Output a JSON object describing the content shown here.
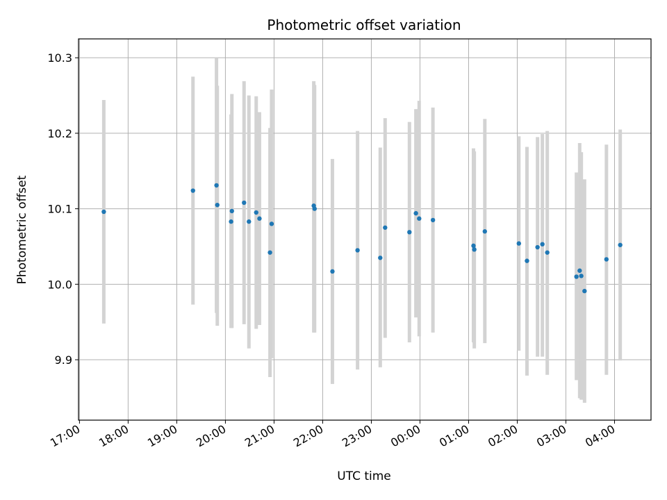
{
  "chart_data": {
    "type": "scatter",
    "title": "Photometric offset variation",
    "xlabel": "UTC time",
    "ylabel": "Photometric offset",
    "grid": true,
    "colors": {
      "point": "#1f77b4",
      "errorbar": "#d3d3d3",
      "grid": "#b0b0b0"
    },
    "x_ticks": [
      "17:00",
      "18:00",
      "19:00",
      "20:00",
      "21:00",
      "22:00",
      "23:00",
      "00:00",
      "01:00",
      "02:00",
      "03:00",
      "04:00"
    ],
    "y_ticks": [
      "9.9",
      "10.0",
      "10.1",
      "10.2",
      "10.3"
    ],
    "x_range_hours_since_17": [
      -0.02,
      11.75
    ],
    "ylim": [
      9.82,
      10.325
    ],
    "points": [
      {
        "t": "17:30",
        "y": 10.096,
        "lo": 9.948,
        "hi": 10.244
      },
      {
        "t": "19:20",
        "y": 10.124,
        "lo": 9.973,
        "hi": 10.275
      },
      {
        "t": "19:49",
        "y": 10.131,
        "lo": 9.962,
        "hi": 10.3
      },
      {
        "t": "19:50",
        "y": 10.105,
        "lo": 9.945,
        "hi": 10.263
      },
      {
        "t": "20:07",
        "y": 10.083,
        "lo": 9.942,
        "hi": 10.225
      },
      {
        "t": "20:08",
        "y": 10.097,
        "lo": 9.942,
        "hi": 10.252
      },
      {
        "t": "20:23",
        "y": 10.108,
        "lo": 9.947,
        "hi": 10.269
      },
      {
        "t": "20:29",
        "y": 10.083,
        "lo": 9.915,
        "hi": 10.25
      },
      {
        "t": "20:38",
        "y": 10.095,
        "lo": 9.941,
        "hi": 10.249
      },
      {
        "t": "20:42",
        "y": 10.087,
        "lo": 9.946,
        "hi": 10.228
      },
      {
        "t": "20:55",
        "y": 10.042,
        "lo": 9.877,
        "hi": 10.207
      },
      {
        "t": "20:57",
        "y": 10.08,
        "lo": 9.902,
        "hi": 10.258
      },
      {
        "t": "21:49",
        "y": 10.104,
        "lo": 9.936,
        "hi": 10.269
      },
      {
        "t": "21:50",
        "y": 10.1,
        "lo": 9.936,
        "hi": 10.264
      },
      {
        "t": "22:12",
        "y": 10.017,
        "lo": 9.868,
        "hi": 10.166
      },
      {
        "t": "22:43",
        "y": 10.045,
        "lo": 9.887,
        "hi": 10.203
      },
      {
        "t": "23:11",
        "y": 10.035,
        "lo": 9.89,
        "hi": 10.181
      },
      {
        "t": "23:17",
        "y": 10.075,
        "lo": 9.929,
        "hi": 10.22
      },
      {
        "t": "23:47",
        "y": 10.069,
        "lo": 9.923,
        "hi": 10.215
      },
      {
        "t": "23:55",
        "y": 10.094,
        "lo": 9.956,
        "hi": 10.232
      },
      {
        "t": "23:59",
        "y": 10.087,
        "lo": 9.931,
        "hi": 10.243
      },
      {
        "t": "00:16",
        "y": 10.085,
        "lo": 9.936,
        "hi": 10.234
      },
      {
        "t": "01:06",
        "y": 10.051,
        "lo": 9.923,
        "hi": 10.18
      },
      {
        "t": "01:07",
        "y": 10.046,
        "lo": 9.915,
        "hi": 10.176
      },
      {
        "t": "01:20",
        "y": 10.07,
        "lo": 9.922,
        "hi": 10.219
      },
      {
        "t": "02:02",
        "y": 10.054,
        "lo": 9.912,
        "hi": 10.196
      },
      {
        "t": "02:12",
        "y": 10.031,
        "lo": 9.879,
        "hi": 10.182
      },
      {
        "t": "02:25",
        "y": 10.049,
        "lo": 9.904,
        "hi": 10.195
      },
      {
        "t": "02:31",
        "y": 10.053,
        "lo": 9.904,
        "hi": 10.199
      },
      {
        "t": "02:37",
        "y": 10.042,
        "lo": 9.88,
        "hi": 10.203
      },
      {
        "t": "03:13",
        "y": 10.01,
        "lo": 9.873,
        "hi": 10.148
      },
      {
        "t": "03:17",
        "y": 10.018,
        "lo": 9.849,
        "hi": 10.187
      },
      {
        "t": "03:19",
        "y": 10.011,
        "lo": 9.847,
        "hi": 10.175
      },
      {
        "t": "03:23",
        "y": 9.991,
        "lo": 9.843,
        "hi": 10.139
      },
      {
        "t": "03:50",
        "y": 10.033,
        "lo": 9.88,
        "hi": 10.185
      },
      {
        "t": "04:07",
        "y": 10.052,
        "lo": 9.899,
        "hi": 10.205
      }
    ]
  }
}
